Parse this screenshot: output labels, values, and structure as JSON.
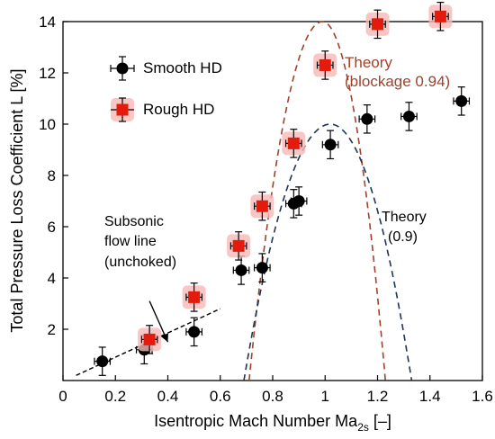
{
  "chart_data": {
    "type": "scatter",
    "xlabel_main": "Isentropic Mach Number  Ma",
    "xlabel_sub": "2s",
    "xlabel_unit": " [–]",
    "ylabel": "Total Pressure Loss Coefficient  L  [%]",
    "xlim": [
      0,
      1.6
    ],
    "ylim": [
      0,
      14
    ],
    "x_ticks": [
      "0",
      "0.2",
      "0.4",
      "0.6",
      "0.8",
      "1",
      "1.2",
      "1.4",
      "1.6"
    ],
    "y_ticks": [
      "2",
      "4",
      "6",
      "8",
      "10",
      "12",
      "14"
    ],
    "colors": {
      "smooth": "#000000",
      "rough": "#e41a0c",
      "rough_halo": "#f7b8b8",
      "theory_blockage": "#a0422a",
      "theory_09": "#1d3557"
    },
    "series": [
      {
        "name": "Smooth HD",
        "marker": "circle",
        "points": [
          {
            "x": 0.15,
            "y": 0.75,
            "xerr": 0.03,
            "yerr": 0.55
          },
          {
            "x": 0.31,
            "y": 1.2,
            "xerr": 0.03,
            "yerr": 0.55
          },
          {
            "x": 0.5,
            "y": 1.9,
            "xerr": 0.03,
            "yerr": 0.55
          },
          {
            "x": 0.68,
            "y": 4.3,
            "xerr": 0.03,
            "yerr": 0.55
          },
          {
            "x": 0.76,
            "y": 4.4,
            "xerr": 0.03,
            "yerr": 0.55
          },
          {
            "x": 0.88,
            "y": 6.9,
            "xerr": 0.03,
            "yerr": 0.55
          },
          {
            "x": 0.9,
            "y": 7.0,
            "xerr": 0.03,
            "yerr": 0.55
          },
          {
            "x": 1.02,
            "y": 9.2,
            "xerr": 0.03,
            "yerr": 0.55
          },
          {
            "x": 1.16,
            "y": 10.2,
            "xerr": 0.03,
            "yerr": 0.55
          },
          {
            "x": 1.32,
            "y": 10.3,
            "xerr": 0.03,
            "yerr": 0.55
          },
          {
            "x": 1.52,
            "y": 10.9,
            "xerr": 0.03,
            "yerr": 0.55
          }
        ]
      },
      {
        "name": "Rough HD",
        "marker": "square",
        "points": [
          {
            "x": 0.33,
            "y": 1.6,
            "xerr": 0.03,
            "yerr": 0.55
          },
          {
            "x": 0.5,
            "y": 3.25,
            "xerr": 0.03,
            "yerr": 0.55
          },
          {
            "x": 0.67,
            "y": 5.25,
            "xerr": 0.03,
            "yerr": 0.55
          },
          {
            "x": 0.76,
            "y": 6.8,
            "xerr": 0.03,
            "yerr": 0.55
          },
          {
            "x": 0.88,
            "y": 9.25,
            "xerr": 0.03,
            "yerr": 0.55
          },
          {
            "x": 1.0,
            "y": 12.3,
            "xerr": 0.03,
            "yerr": 0.55
          },
          {
            "x": 1.2,
            "y": 13.9,
            "xerr": 0.03,
            "yerr": 0.55
          },
          {
            "x": 1.44,
            "y": 14.2,
            "xerr": 0.03,
            "yerr": 0.55
          }
        ]
      }
    ],
    "subsonic_line": {
      "x": [
        0.05,
        0.6
      ],
      "y": [
        0.2,
        2.8
      ]
    },
    "theory_blockage": {
      "peak_x": 0.99,
      "peak_y": 14.0,
      "roots": [
        0.71,
        1.23
      ]
    },
    "theory_09": {
      "peak_x": 1.02,
      "peak_y": 10.0,
      "roots": [
        0.69,
        1.33
      ]
    },
    "annotations": {
      "theory_blockage_1": "Theory",
      "theory_blockage_2": "(blockage 0.94)",
      "theory_09_1": "Theory",
      "theory_09_2": "(0.9)",
      "subsonic_1": "Subsonic",
      "subsonic_2": "flow line",
      "subsonic_3": "(unchoked)"
    },
    "arrow": {
      "from_x": 0.33,
      "from_y": 3.1,
      "to_x": 0.4,
      "to_y": 1.5
    },
    "legend_position": "top-left"
  }
}
